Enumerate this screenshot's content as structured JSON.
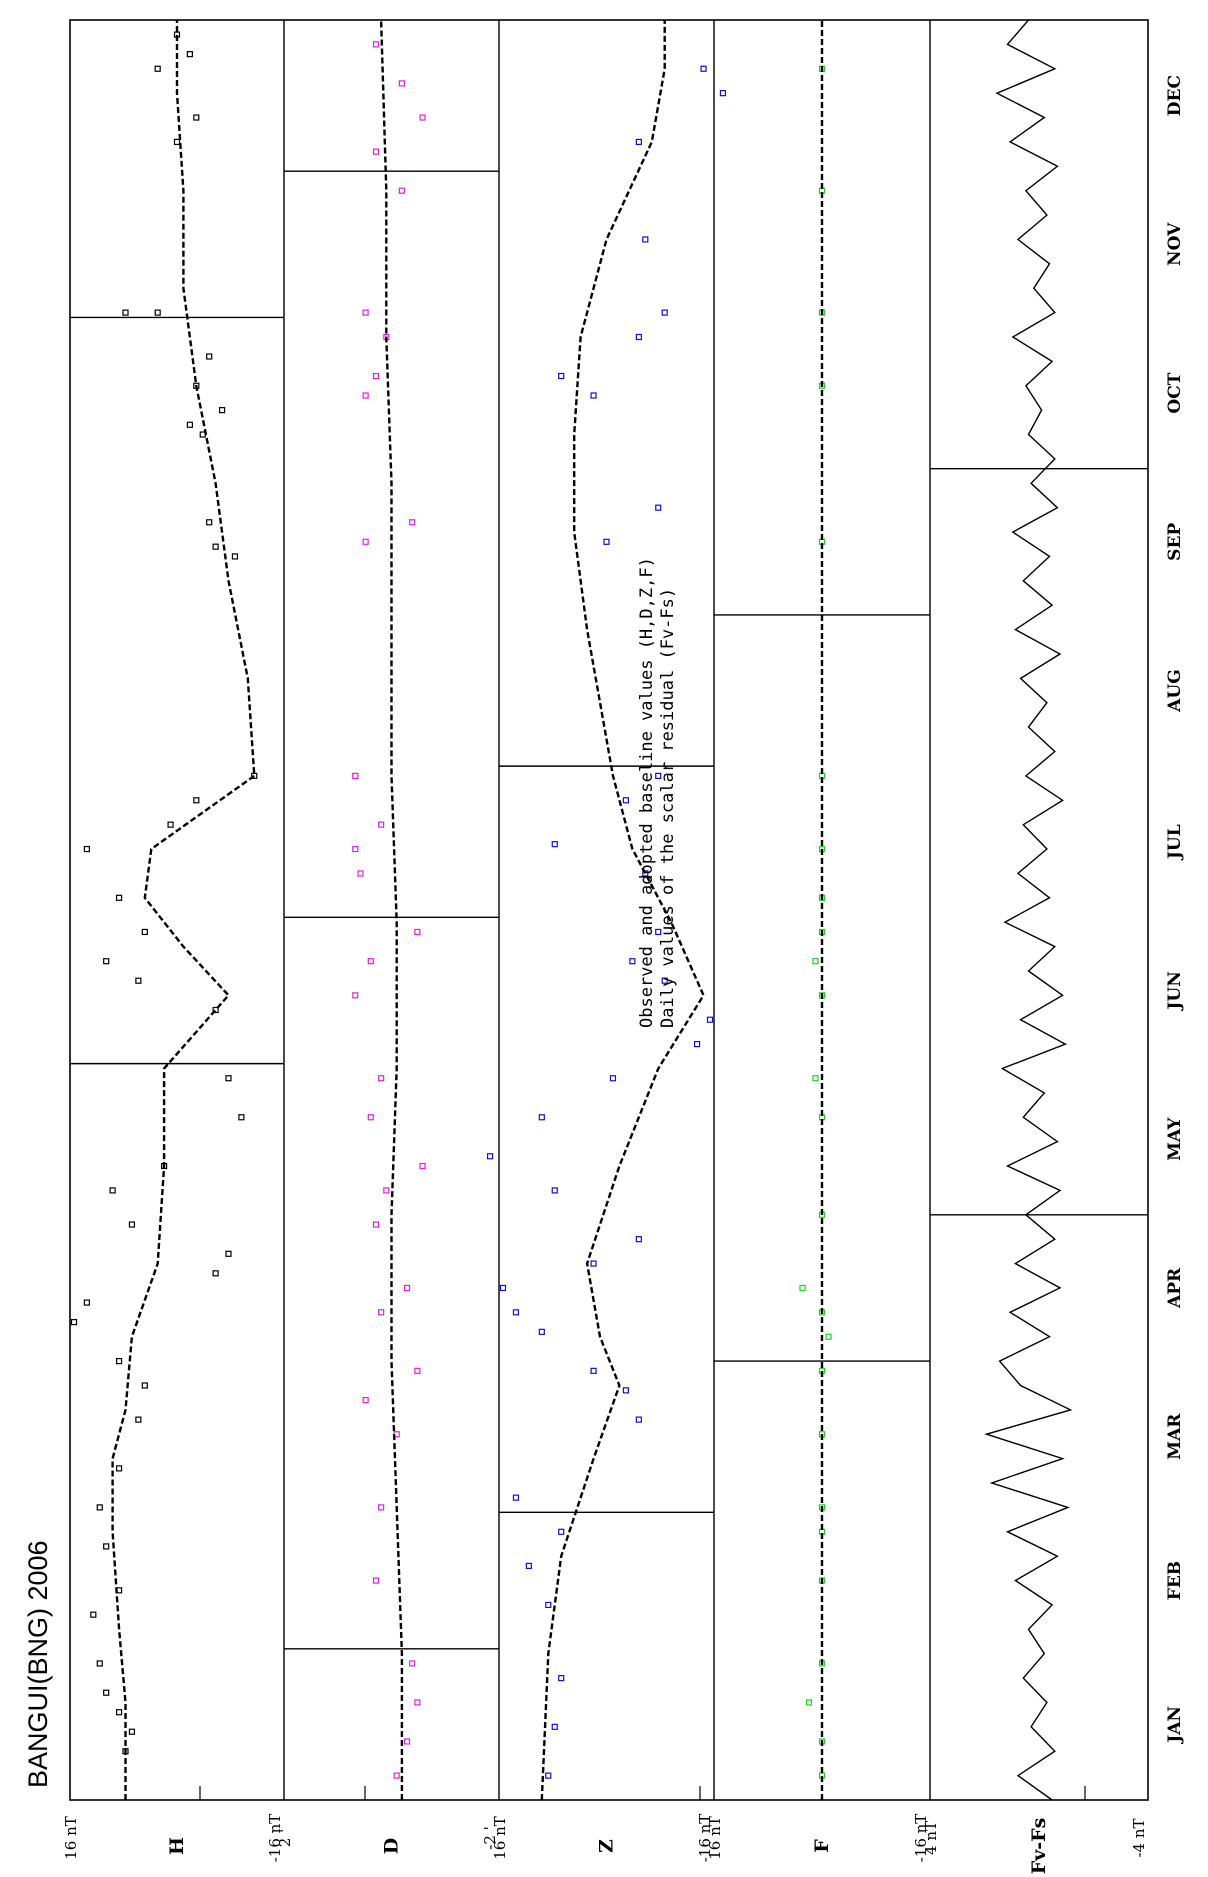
{
  "title": "BANGUI(BNG) 2006",
  "annotation": {
    "line1": "Observed and adopted baseline values (H,D,Z,F)",
    "line2": "Daily values of the scalar residual (Fv-Fs)"
  },
  "colors": {
    "H": "#000000",
    "D": "#e020e0",
    "Z": "#1010d0",
    "F": "#20d020",
    "residual": "#000000",
    "baseline": "#000000"
  },
  "chart_data": {
    "type": "line",
    "title": "BANGUI(BNG) 2006",
    "x_axis": {
      "labels": [
        "JAN",
        "FEB",
        "MAR",
        "APR",
        "MAY",
        "JUN",
        "JUL",
        "AUG",
        "SEP",
        "OCT",
        "NOV",
        "DEC"
      ],
      "range": [
        0,
        365
      ]
    },
    "panels": [
      {
        "name": "H",
        "color": "#000000",
        "scale_top": "16 nT",
        "scale_bottom": "-16 nT",
        "ylim": [
          -16,
          16
        ],
        "baseline": [
          [
            0,
            8
          ],
          [
            20,
            8
          ],
          [
            35,
            9
          ],
          [
            55,
            10
          ],
          [
            70,
            10
          ],
          [
            80,
            8
          ],
          [
            95,
            7
          ],
          [
            110,
            3
          ],
          [
            130,
            2
          ],
          [
            150,
            2
          ],
          [
            165,
            -8
          ],
          [
            175,
            -1
          ],
          [
            185,
            5
          ],
          [
            195,
            4
          ],
          [
            210,
            -12
          ],
          [
            230,
            -11
          ],
          [
            250,
            -8
          ],
          [
            270,
            -6
          ],
          [
            290,
            -3
          ],
          [
            310,
            -1
          ],
          [
            330,
            -1
          ],
          [
            350,
            0
          ],
          [
            365,
            0
          ]
        ],
        "observed": [
          [
            10,
            8
          ],
          [
            14,
            7
          ],
          [
            18,
            9
          ],
          [
            22,
            11
          ],
          [
            28,
            12
          ],
          [
            38,
            13
          ],
          [
            43,
            9
          ],
          [
            52,
            11
          ],
          [
            60,
            12
          ],
          [
            68,
            9
          ],
          [
            78,
            6
          ],
          [
            85,
            5
          ],
          [
            90,
            9
          ],
          [
            98,
            16
          ],
          [
            102,
            14
          ],
          [
            108,
            -6
          ],
          [
            112,
            -8
          ],
          [
            118,
            7
          ],
          [
            125,
            10
          ],
          [
            130,
            2
          ],
          [
            140,
            -10
          ],
          [
            148,
            -8
          ],
          [
            162,
            -6
          ],
          [
            168,
            6
          ],
          [
            172,
            11
          ],
          [
            178,
            5
          ],
          [
            185,
            9
          ],
          [
            195,
            14
          ],
          [
            200,
            1
          ],
          [
            205,
            -3
          ],
          [
            210,
            -12
          ],
          [
            255,
            -9
          ],
          [
            257,
            -6
          ],
          [
            262,
            -5
          ],
          [
            280,
            -4
          ],
          [
            282,
            -2
          ],
          [
            285,
            -7
          ],
          [
            290,
            -3
          ],
          [
            296,
            -5
          ],
          [
            305,
            3
          ],
          [
            305,
            8
          ],
          [
            340,
            0
          ],
          [
            345,
            -3
          ],
          [
            355,
            3
          ],
          [
            358,
            -2
          ],
          [
            362,
            0
          ]
        ]
      },
      {
        "name": "D",
        "color": "#e020e0",
        "scale_top": "2 '",
        "scale_bottom": "-2 '",
        "ylim": [
          -2,
          2
        ],
        "baseline": [
          [
            0,
            -0.2
          ],
          [
            30,
            -0.2
          ],
          [
            60,
            -0.1
          ],
          [
            90,
            0
          ],
          [
            120,
            0
          ],
          [
            150,
            -0.1
          ],
          [
            180,
            -0.1
          ],
          [
            210,
            0
          ],
          [
            240,
            0
          ],
          [
            270,
            0
          ],
          [
            300,
            0.1
          ],
          [
            330,
            0.1
          ],
          [
            365,
            0.2
          ]
        ],
        "observed": [
          [
            5,
            -0.1
          ],
          [
            12,
            -0.3
          ],
          [
            20,
            -0.5
          ],
          [
            28,
            -0.4
          ],
          [
            45,
            0.3
          ],
          [
            60,
            0.2
          ],
          [
            75,
            -0.1
          ],
          [
            82,
            0.5
          ],
          [
            88,
            -0.5
          ],
          [
            100,
            0.2
          ],
          [
            105,
            -0.3
          ],
          [
            118,
            0.3
          ],
          [
            125,
            0.1
          ],
          [
            130,
            -0.6
          ],
          [
            140,
            0.4
          ],
          [
            148,
            0.2
          ],
          [
            165,
            0.7
          ],
          [
            172,
            0.4
          ],
          [
            178,
            -0.5
          ],
          [
            190,
            0.6
          ],
          [
            195,
            0.7
          ],
          [
            200,
            0.2
          ],
          [
            210,
            0.7
          ],
          [
            258,
            0.5
          ],
          [
            262,
            -0.4
          ],
          [
            288,
            0.5
          ],
          [
            292,
            0.3
          ],
          [
            300,
            0.1
          ],
          [
            305,
            0.5
          ],
          [
            330,
            -0.2
          ],
          [
            338,
            0.3
          ],
          [
            345,
            -0.6
          ],
          [
            352,
            -0.2
          ],
          [
            360,
            0.3
          ]
        ]
      },
      {
        "name": "Z",
        "color": "#1010d0",
        "scale_top": "16 nT",
        "scale_bottom": "-16 nT",
        "ylim": [
          -16,
          16
        ],
        "baseline": [
          [
            0,
            10
          ],
          [
            30,
            9
          ],
          [
            50,
            7
          ],
          [
            70,
            2
          ],
          [
            85,
            -2
          ],
          [
            95,
            1
          ],
          [
            110,
            3
          ],
          [
            130,
            -2
          ],
          [
            150,
            -8
          ],
          [
            165,
            -15
          ],
          [
            180,
            -10
          ],
          [
            195,
            -4
          ],
          [
            210,
            -1
          ],
          [
            240,
            3
          ],
          [
            260,
            5
          ],
          [
            280,
            5
          ],
          [
            300,
            4
          ],
          [
            320,
            0
          ],
          [
            340,
            -7
          ],
          [
            355,
            -9
          ],
          [
            365,
            -9
          ]
        ],
        "observed": [
          [
            5,
            9
          ],
          [
            15,
            8
          ],
          [
            25,
            7
          ],
          [
            40,
            9
          ],
          [
            48,
            12
          ],
          [
            55,
            7
          ],
          [
            62,
            14
          ],
          [
            78,
            -5
          ],
          [
            84,
            -3
          ],
          [
            88,
            2
          ],
          [
            96,
            10
          ],
          [
            100,
            14
          ],
          [
            105,
            16
          ],
          [
            110,
            2
          ],
          [
            115,
            -5
          ],
          [
            125,
            8
          ],
          [
            132,
            18
          ],
          [
            140,
            10
          ],
          [
            148,
            -1
          ],
          [
            155,
            -14
          ],
          [
            160,
            -16
          ],
          [
            168,
            -9
          ],
          [
            172,
            -4
          ],
          [
            178,
            -8
          ],
          [
            190,
            -6
          ],
          [
            196,
            8
          ],
          [
            205,
            -3
          ],
          [
            210,
            -8
          ],
          [
            258,
            0
          ],
          [
            265,
            -8
          ],
          [
            288,
            2
          ],
          [
            292,
            7
          ],
          [
            300,
            -5
          ],
          [
            305,
            -9
          ],
          [
            320,
            -6
          ],
          [
            340,
            -5
          ],
          [
            350,
            -18
          ],
          [
            355,
            -15
          ]
        ]
      },
      {
        "name": "F",
        "color": "#20d020",
        "scale_top": "16 nT",
        "scale_bottom": "-16 nT",
        "ylim": [
          -16,
          16
        ],
        "baseline": [
          [
            0,
            0
          ],
          [
            365,
            0
          ]
        ],
        "observed": [
          [
            5,
            0
          ],
          [
            12,
            0
          ],
          [
            20,
            2
          ],
          [
            28,
            0
          ],
          [
            45,
            0
          ],
          [
            55,
            0
          ],
          [
            60,
            0
          ],
          [
            75,
            0
          ],
          [
            88,
            0
          ],
          [
            95,
            -1
          ],
          [
            100,
            0
          ],
          [
            105,
            3
          ],
          [
            120,
            0
          ],
          [
            140,
            0
          ],
          [
            148,
            1
          ],
          [
            165,
            0
          ],
          [
            172,
            1
          ],
          [
            178,
            0
          ],
          [
            185,
            0
          ],
          [
            195,
            0
          ],
          [
            210,
            0
          ],
          [
            258,
            0
          ],
          [
            290,
            0
          ],
          [
            305,
            0
          ],
          [
            330,
            0
          ],
          [
            355,
            0
          ]
        ]
      },
      {
        "name": "Fv-Fs",
        "color": "#000000",
        "scale_top": "4 nT",
        "scale_bottom": "-4 nT",
        "ylim": [
          -4,
          4
        ],
        "series": [
          [
            0,
            -0.5
          ],
          [
            5,
            0.8
          ],
          [
            10,
            -0.6
          ],
          [
            15,
            0.3
          ],
          [
            20,
            -0.3
          ],
          [
            25,
            0.6
          ],
          [
            30,
            -0.2
          ],
          [
            35,
            0.4
          ],
          [
            40,
            -0.5
          ],
          [
            45,
            0.9
          ],
          [
            50,
            -0.7
          ],
          [
            55,
            1.2
          ],
          [
            60,
            -1.1
          ],
          [
            65,
            1.8
          ],
          [
            70,
            -0.9
          ],
          [
            75,
            2.0
          ],
          [
            80,
            -1.2
          ],
          [
            85,
            0.7
          ],
          [
            90,
            1.5
          ],
          [
            95,
            -0.4
          ],
          [
            100,
            1.1
          ],
          [
            105,
            -0.8
          ],
          [
            110,
            0.9
          ],
          [
            115,
            -0.6
          ],
          [
            120,
            0.5
          ],
          [
            125,
            -0.8
          ],
          [
            130,
            1.2
          ],
          [
            135,
            -0.7
          ],
          [
            140,
            0.6
          ],
          [
            145,
            -0.2
          ],
          [
            150,
            1.4
          ],
          [
            155,
            -1.0
          ],
          [
            160,
            0.7
          ],
          [
            165,
            -0.9
          ],
          [
            170,
            0.4
          ],
          [
            175,
            -0.6
          ],
          [
            180,
            1.3
          ],
          [
            185,
            -0.4
          ],
          [
            190,
            0.8
          ],
          [
            195,
            -0.3
          ],
          [
            200,
            0.6
          ],
          [
            205,
            -0.9
          ],
          [
            210,
            0.5
          ],
          [
            215,
            -0.6
          ],
          [
            220,
            0.4
          ],
          [
            225,
            -0.3
          ],
          [
            230,
            0.7
          ],
          [
            235,
            -0.8
          ],
          [
            240,
            0.9
          ],
          [
            245,
            -0.5
          ],
          [
            250,
            0.6
          ],
          [
            255,
            -0.4
          ],
          [
            260,
            1.0
          ],
          [
            265,
            -0.7
          ],
          [
            270,
            0.3
          ],
          [
            275,
            -0.6
          ],
          [
            280,
            0.4
          ],
          [
            285,
            -0.1
          ],
          [
            290,
            0.5
          ],
          [
            295,
            -0.5
          ],
          [
            300,
            1.0
          ],
          [
            305,
            -0.6
          ],
          [
            310,
            0.2
          ],
          [
            315,
            -0.4
          ],
          [
            320,
            0.8
          ],
          [
            325,
            -0.3
          ],
          [
            330,
            0.5
          ],
          [
            335,
            -0.7
          ],
          [
            340,
            1.1
          ],
          [
            345,
            -0.2
          ],
          [
            350,
            1.6
          ],
          [
            355,
            -0.6
          ],
          [
            360,
            1.2
          ],
          [
            365,
            0.4
          ]
        ]
      }
    ]
  }
}
